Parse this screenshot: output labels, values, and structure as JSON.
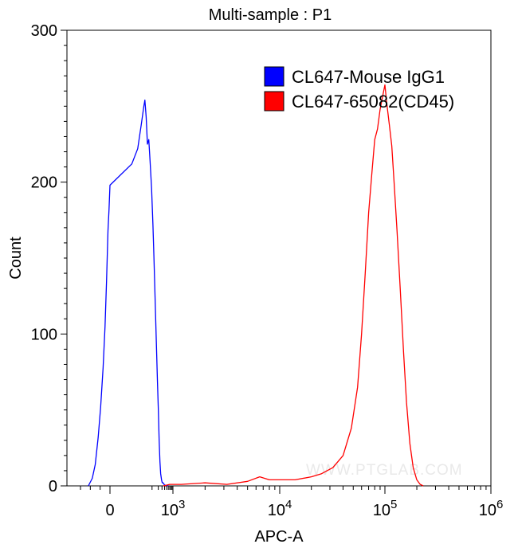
{
  "chart_data": {
    "type": "line",
    "title": "Multi-sample : P1",
    "xlabel": "APC-A",
    "ylabel": "Count",
    "x_scale": "biexponential",
    "ylim": [
      0,
      300
    ],
    "y_ticks": [
      0,
      100,
      200,
      300
    ],
    "x_ticks": [
      {
        "value": 0,
        "label": "0",
        "sup": ""
      },
      {
        "value": 1000,
        "label": "10",
        "sup": "3"
      },
      {
        "value": 10000,
        "label": "10",
        "sup": "4"
      },
      {
        "value": 100000,
        "label": "10",
        "sup": "5"
      },
      {
        "value": 1000000,
        "label": "10",
        "sup": "6"
      }
    ],
    "grid": false,
    "legend_position": "top-right",
    "watermark": "WWW.PTGLAB.COM",
    "series": [
      {
        "name": "CL647-Mouse IgG1",
        "color": "#0000ff",
        "points": [
          [
            -220,
            0
          ],
          [
            -180,
            5
          ],
          [
            -150,
            14
          ],
          [
            -120,
            32
          ],
          [
            -95,
            52
          ],
          [
            -70,
            78
          ],
          [
            -50,
            105
          ],
          [
            -35,
            135
          ],
          [
            -20,
            168
          ],
          [
            -10,
            182
          ],
          [
            0,
            198
          ],
          [
            10,
            212
          ],
          [
            20,
            222
          ],
          [
            30,
            238
          ],
          [
            40,
            250
          ],
          [
            45,
            254
          ],
          [
            52,
            243
          ],
          [
            60,
            225
          ],
          [
            70,
            228
          ],
          [
            80,
            214
          ],
          [
            95,
            196
          ],
          [
            110,
            172
          ],
          [
            125,
            148
          ],
          [
            140,
            124
          ],
          [
            160,
            96
          ],
          [
            180,
            70
          ],
          [
            200,
            50
          ],
          [
            220,
            30
          ],
          [
            240,
            16
          ],
          [
            260,
            8
          ],
          [
            285,
            4
          ],
          [
            310,
            2
          ],
          [
            340,
            2
          ],
          [
            400,
            0.5
          ],
          [
            500,
            0.3
          ],
          [
            600,
            0
          ]
        ]
      },
      {
        "name": "CL647-65082(CD45)",
        "color": "#ff0000",
        "points": [
          [
            350,
            0
          ],
          [
            700,
            1
          ],
          [
            1200,
            1
          ],
          [
            2000,
            2
          ],
          [
            3200,
            1
          ],
          [
            5000,
            3
          ],
          [
            6500,
            6
          ],
          [
            8000,
            4
          ],
          [
            10000,
            4
          ],
          [
            14000,
            4
          ],
          [
            20000,
            6
          ],
          [
            25000,
            8
          ],
          [
            32000,
            12
          ],
          [
            40000,
            20
          ],
          [
            48000,
            38
          ],
          [
            55000,
            65
          ],
          [
            60000,
            100
          ],
          [
            65000,
            140
          ],
          [
            70000,
            180
          ],
          [
            75000,
            205
          ],
          [
            80000,
            228
          ],
          [
            85000,
            235
          ],
          [
            90000,
            248
          ],
          [
            96000,
            258
          ],
          [
            100000,
            264
          ],
          [
            104000,
            252
          ],
          [
            110000,
            238
          ],
          [
            116000,
            224
          ],
          [
            122000,
            200
          ],
          [
            130000,
            168
          ],
          [
            140000,
            128
          ],
          [
            150000,
            88
          ],
          [
            160000,
            55
          ],
          [
            172000,
            28
          ],
          [
            185000,
            12
          ],
          [
            200000,
            4
          ],
          [
            215000,
            1
          ],
          [
            230000,
            0
          ]
        ]
      }
    ]
  }
}
